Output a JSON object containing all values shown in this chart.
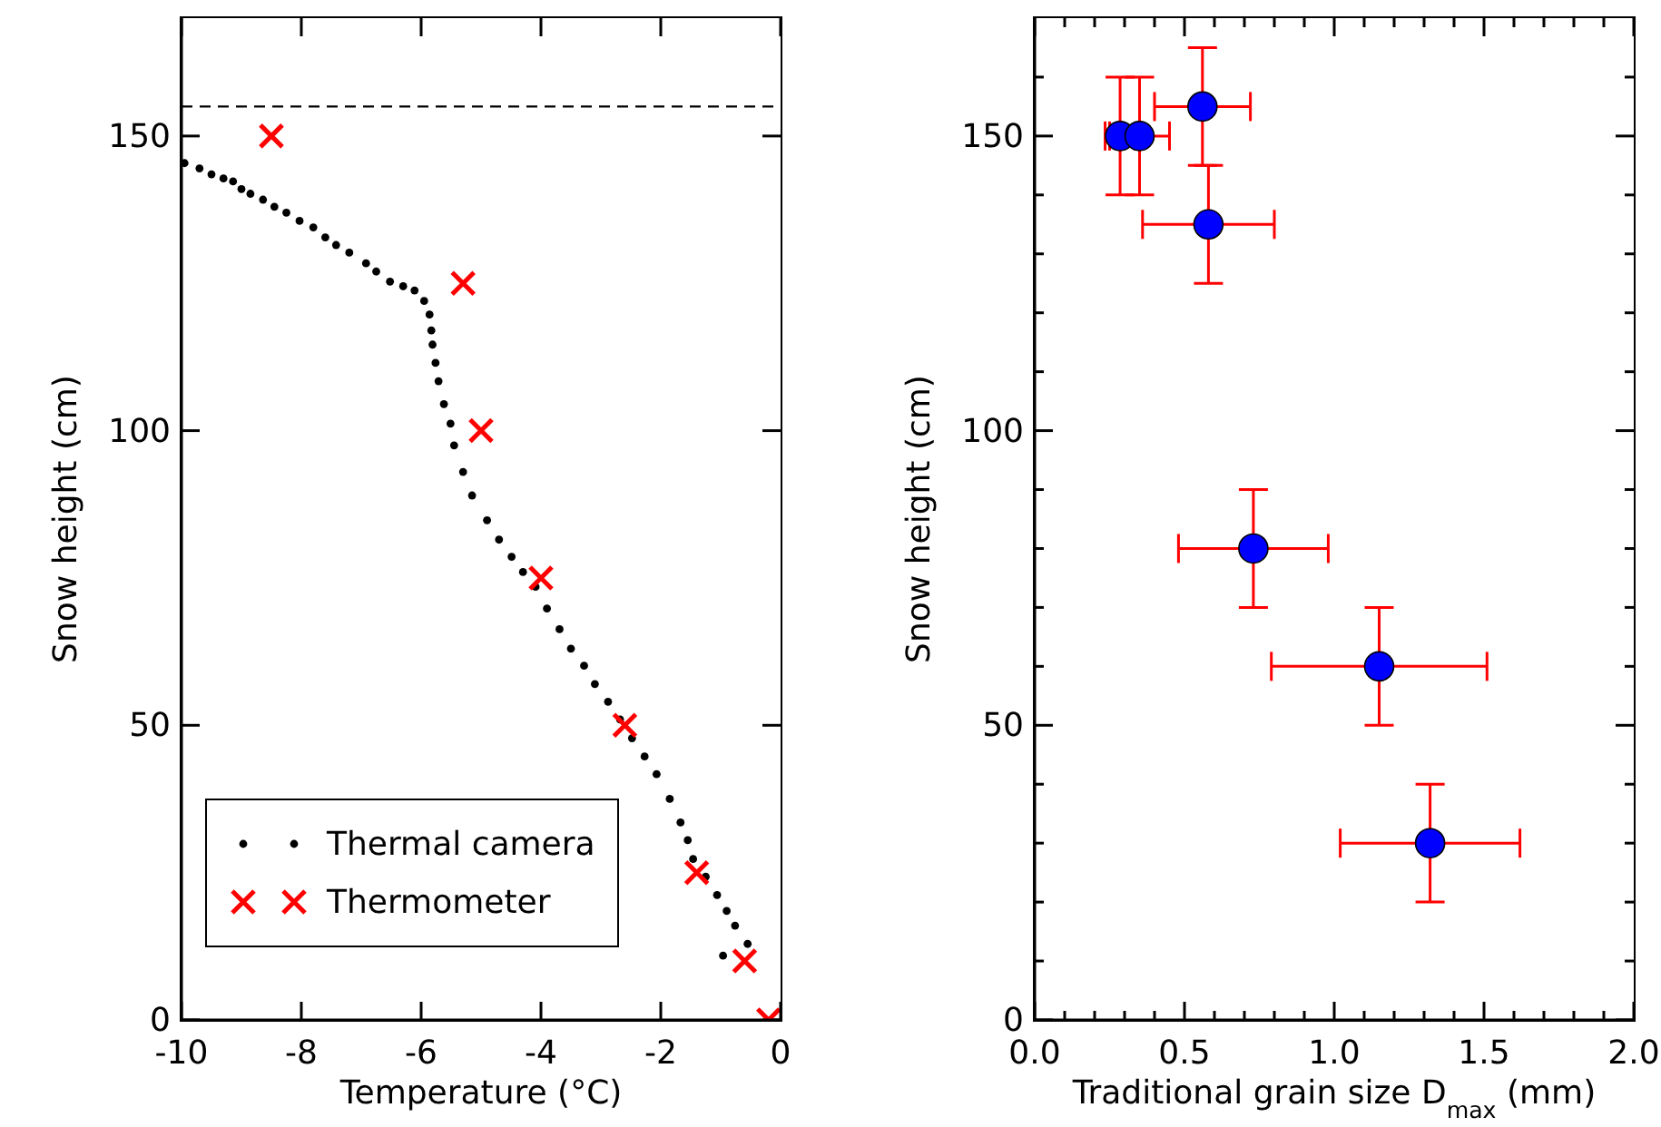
{
  "chart_data": [
    {
      "type": "scatter",
      "xlabel": "Temperature (°C)",
      "ylabel": "Snow height (cm)",
      "xlim": [
        -10,
        0
      ],
      "xticks": [
        -10,
        -8,
        -6,
        -4,
        -2,
        0
      ],
      "ylim": [
        0,
        170
      ],
      "yticks": [
        0,
        50,
        100,
        150
      ],
      "legend": "bottom left",
      "ref_lines": [
        {
          "axis": "y",
          "value": 155,
          "color": "#000000",
          "line_style": "dashed"
        }
      ],
      "series": [
        {
          "name": "Thermal camera",
          "color": "#000000",
          "marker": "circle",
          "x": [
            -9.95,
            -9.7,
            -9.5,
            -9.3,
            -9.14,
            -9.0,
            -8.85,
            -8.64,
            -8.45,
            -8.25,
            -8.03,
            -7.8,
            -7.6,
            -7.42,
            -7.2,
            -6.92,
            -6.75,
            -6.52,
            -6.3,
            -6.11,
            -5.95,
            -5.86,
            -5.83,
            -5.81,
            -5.76,
            -5.71,
            -5.62,
            -5.51,
            -5.45,
            -5.3,
            -5.15,
            -4.9,
            -4.7,
            -4.49,
            -4.3,
            -4.09,
            -3.9,
            -3.69,
            -3.5,
            -3.28,
            -3.1,
            -2.88,
            -2.68,
            -2.48,
            -2.27,
            -2.07,
            -1.85,
            -1.67,
            -1.55,
            -1.46,
            -1.25,
            -1.06,
            -0.9,
            -0.76,
            -0.55,
            -0.96
          ],
          "values": [
            145.4,
            144.5,
            143.5,
            142.8,
            142.3,
            141,
            140.2,
            139.2,
            138,
            137,
            135.6,
            134.5,
            132.8,
            131.5,
            130.2,
            128.4,
            127,
            125.3,
            124.5,
            123.8,
            122,
            119.7,
            117,
            114.6,
            111.5,
            108.4,
            104.5,
            101.2,
            97.5,
            93,
            89,
            84.8,
            81.5,
            78.6,
            76,
            73.5,
            69.8,
            66.3,
            63,
            60.1,
            57,
            54,
            51,
            47.8,
            44.7,
            41.7,
            37.5,
            33.5,
            30.5,
            27.3,
            24.3,
            21.2,
            18.5,
            16,
            12.9,
            10.9
          ]
        },
        {
          "name": "Thermometer",
          "color": "#ff0000",
          "marker": "cross",
          "x": [
            -8.5,
            -5.3,
            -5.0,
            -4.0,
            -2.6,
            -1.4,
            -0.6,
            -0.2
          ],
          "values": [
            150,
            125,
            100,
            75,
            50,
            25,
            10,
            0
          ]
        }
      ]
    },
    {
      "type": "scatter",
      "xlabel": "Traditional grain size D$_{max}$ (mm)",
      "ylabel": "Snow height (cm)",
      "xlim": [
        0,
        2
      ],
      "xticks": [
        {
          "value": 0,
          "label": "0.0"
        },
        {
          "value": 0.1,
          "label": null
        },
        {
          "value": 0.2,
          "label": null
        },
        {
          "value": 0.3,
          "label": null
        },
        {
          "value": 0.4,
          "label": null
        },
        {
          "value": 0.5,
          "label": "0.5"
        },
        {
          "value": 0.6,
          "label": null
        },
        {
          "value": 0.7,
          "label": null
        },
        {
          "value": 0.8,
          "label": null
        },
        {
          "value": 0.9,
          "label": null
        },
        {
          "value": 1,
          "label": "1.0"
        },
        {
          "value": 1.1,
          "label": null
        },
        {
          "value": 1.2,
          "label": null
        },
        {
          "value": 1.3,
          "label": null
        },
        {
          "value": 1.4,
          "label": null
        },
        {
          "value": 1.5,
          "label": "1.5"
        },
        {
          "value": 1.6,
          "label": null
        },
        {
          "value": 1.7,
          "label": null
        },
        {
          "value": 1.8,
          "label": null
        },
        {
          "value": 1.9,
          "label": null
        },
        {
          "value": 2,
          "label": "2.0"
        }
      ],
      "ylim": [
        0,
        170
      ],
      "yticks": [
        0,
        {
          "value": 10,
          "label": null
        },
        {
          "value": 20,
          "label": null
        },
        {
          "value": 30,
          "label": null
        },
        {
          "value": 40,
          "label": null
        },
        50,
        {
          "value": 60,
          "label": null
        },
        {
          "value": 70,
          "label": null
        },
        {
          "value": 80,
          "label": null
        },
        {
          "value": 90,
          "label": null
        },
        100,
        {
          "value": 110,
          "label": null
        },
        {
          "value": 120,
          "label": null
        },
        {
          "value": 130,
          "label": null
        },
        {
          "value": 140,
          "label": null
        },
        150,
        {
          "value": 160,
          "label": null
        }
      ],
      "series": [
        {
          "color": "#0000ff",
          "marker": "circle",
          "x": [
            0.285,
            0.35,
            0.56,
            0.58,
            0.73,
            1.15,
            1.32
          ],
          "values": [
            150,
            150,
            155,
            135,
            80,
            60,
            30
          ],
          "errors": [
            10,
            10,
            10,
            10,
            10,
            10,
            10
          ],
          "xerrors": [
            0.05,
            0.1,
            0.16,
            0.22,
            0.25,
            0.36,
            0.3
          ]
        }
      ]
    }
  ]
}
